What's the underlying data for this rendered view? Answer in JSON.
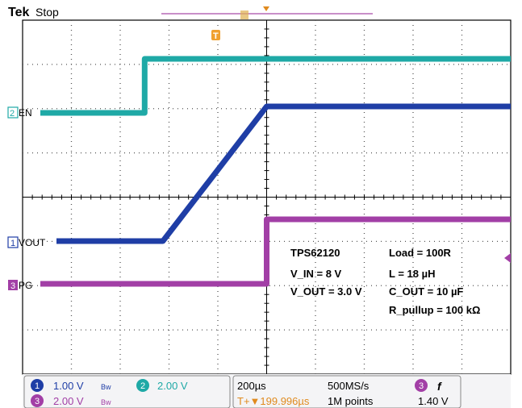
{
  "header": {
    "brand": "Tek",
    "status": "Stop",
    "trigger_marker": "T"
  },
  "channels": [
    {
      "num": "2",
      "name": "EN",
      "color": "#1fa9a6"
    },
    {
      "num": "1",
      "name": "VOUT",
      "color": "#1f3ea6"
    },
    {
      "num": "3",
      "name": "PG",
      "color": "#a23fa6"
    }
  ],
  "annotations": {
    "left": [
      "TPS62120",
      "V_IN = 8 V",
      "V_OUT = 3.0 V"
    ],
    "right": [
      "Load = 100R",
      "L = 18 µH",
      "C_OUT = 10 µF",
      "R_pullup = 100 kΩ"
    ]
  },
  "footer": {
    "ch1": {
      "num": "1",
      "scale": "1.00 V",
      "coupling": "Bw"
    },
    "ch2": {
      "num": "2",
      "scale": "2.00 V"
    },
    "ch3": {
      "num": "3",
      "scale": "2.00 V",
      "coupling": "Bw"
    },
    "timebase": "200µs",
    "sample_rate": "500MS/s",
    "trigger_pos": "T+▼199.996µs",
    "record_length": "1M points",
    "trigger_channel": "3",
    "trigger_edge": "f",
    "trigger_level": "1.40 V"
  },
  "chart_data": {
    "type": "line",
    "title": "",
    "xlabel": "",
    "ylabel": "",
    "x_unit": "µs",
    "x_per_div": 200,
    "grid": true,
    "xlim": [
      0,
      2000
    ],
    "series": [
      {
        "name": "EN",
        "channel": 2,
        "color": "#1fa9a6",
        "points": [
          [
            0,
            0
          ],
          [
            500,
            0
          ],
          [
            500,
            2.9
          ],
          [
            2000,
            2.9
          ]
        ]
      },
      {
        "name": "VOUT",
        "channel": 1,
        "color": "#1f3ea6",
        "points": [
          [
            0,
            0
          ],
          [
            575,
            0
          ],
          [
            1000,
            3.0
          ],
          [
            2000,
            3.0
          ]
        ]
      },
      {
        "name": "PG",
        "channel": 3,
        "color": "#a23fa6",
        "points": [
          [
            0,
            0
          ],
          [
            1000,
            0
          ],
          [
            1000,
            4.0
          ],
          [
            2000,
            4.0
          ]
        ]
      }
    ]
  }
}
